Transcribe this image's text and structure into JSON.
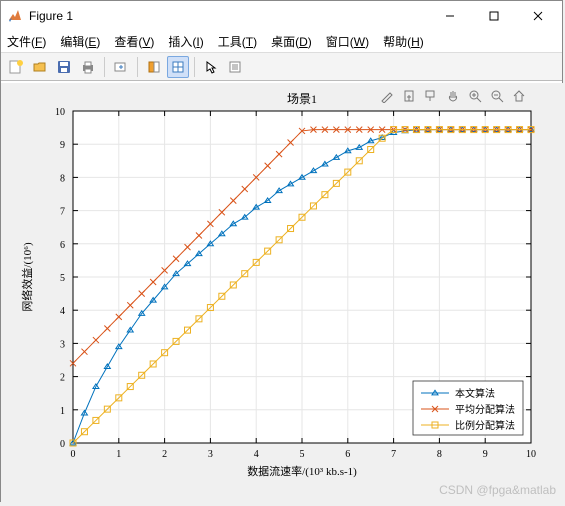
{
  "window": {
    "title": "Figure 1",
    "bg": "#ffffff"
  },
  "menubar": {
    "items": [
      {
        "label": "文件",
        "hotletter": "F"
      },
      {
        "label": "编辑",
        "hotletter": "E"
      },
      {
        "label": "查看",
        "hotletter": "V"
      },
      {
        "label": "插入",
        "hotletter": "I"
      },
      {
        "label": "工具",
        "hotletter": "T"
      },
      {
        "label": "桌面",
        "hotletter": "D"
      },
      {
        "label": "窗口",
        "hotletter": "W"
      },
      {
        "label": "帮助",
        "hotletter": "H"
      }
    ]
  },
  "chart": {
    "title": "场景1",
    "title_fontsize": 12,
    "xlabel": "数据流速率/(10³ kb.s-1)",
    "ylabel": "网络效益/(10⁶)",
    "label_fontsize": 11,
    "xlim": [
      0,
      10
    ],
    "ylim": [
      0,
      10
    ],
    "xtick_step": 1,
    "ytick_step": 1,
    "tick_fontsize": 10,
    "grid_color": "#e6e6e6",
    "axis_color": "#000000",
    "bg": "#ffffff",
    "figure_bg": "#f0f0f0",
    "series": [
      {
        "name": "本文算法",
        "color": "#0072bd",
        "marker": "triangle",
        "line_width": 1,
        "marker_size": 5,
        "x": [
          0,
          0.25,
          0.5,
          0.75,
          1,
          1.25,
          1.5,
          1.75,
          2,
          2.25,
          2.5,
          2.75,
          3,
          3.25,
          3.5,
          3.75,
          4,
          4.25,
          4.5,
          4.75,
          5,
          5.25,
          5.5,
          5.75,
          6,
          6.25,
          6.5,
          6.75,
          7,
          7.25,
          7.5,
          7.75,
          8,
          8.25,
          8.5,
          8.75,
          9,
          9.25,
          9.5,
          9.75,
          10
        ],
        "y": [
          0,
          0.9,
          1.7,
          2.3,
          2.9,
          3.4,
          3.9,
          4.3,
          4.7,
          5.1,
          5.4,
          5.7,
          6.0,
          6.3,
          6.6,
          6.8,
          7.1,
          7.3,
          7.6,
          7.8,
          8.0,
          8.2,
          8.4,
          8.6,
          8.8,
          8.9,
          9.1,
          9.2,
          9.35,
          9.4,
          9.43,
          9.44,
          9.44,
          9.44,
          9.44,
          9.44,
          9.44,
          9.44,
          9.44,
          9.44,
          9.44
        ]
      },
      {
        "name": "平均分配算法",
        "color": "#d95319",
        "marker": "x",
        "line_width": 1,
        "marker_size": 5,
        "x": [
          0,
          0.25,
          0.5,
          0.75,
          1,
          1.25,
          1.5,
          1.75,
          2,
          2.25,
          2.5,
          2.75,
          3,
          3.25,
          3.5,
          3.75,
          4,
          4.25,
          4.5,
          4.75,
          5,
          5.25,
          5.5,
          5.75,
          6,
          6.25,
          6.5,
          6.75,
          7,
          7.25,
          7.5,
          7.75,
          8,
          8.25,
          8.5,
          8.75,
          9,
          9.25,
          9.5,
          9.75,
          10
        ],
        "y": [
          2.4,
          2.75,
          3.1,
          3.45,
          3.8,
          4.15,
          4.5,
          4.85,
          5.2,
          5.55,
          5.9,
          6.25,
          6.6,
          6.95,
          7.3,
          7.65,
          8.0,
          8.35,
          8.7,
          9.05,
          9.4,
          9.44,
          9.44,
          9.44,
          9.44,
          9.44,
          9.44,
          9.44,
          9.44,
          9.44,
          9.44,
          9.44,
          9.44,
          9.44,
          9.44,
          9.44,
          9.44,
          9.44,
          9.44,
          9.44,
          9.44
        ]
      },
      {
        "name": "比例分配算法",
        "color": "#edb120",
        "marker": "square",
        "line_width": 1,
        "marker_size": 5,
        "x": [
          0,
          0.25,
          0.5,
          0.75,
          1,
          1.25,
          1.5,
          1.75,
          2,
          2.25,
          2.5,
          2.75,
          3,
          3.25,
          3.5,
          3.75,
          4,
          4.25,
          4.5,
          4.75,
          5,
          5.25,
          5.5,
          5.75,
          6,
          6.25,
          6.5,
          6.75,
          7,
          7.25,
          7.5,
          7.75,
          8,
          8.25,
          8.5,
          8.75,
          9,
          9.25,
          9.5,
          9.75,
          10
        ],
        "y": [
          0,
          0.34,
          0.68,
          1.02,
          1.36,
          1.7,
          2.04,
          2.38,
          2.72,
          3.06,
          3.4,
          3.74,
          4.08,
          4.42,
          4.76,
          5.1,
          5.44,
          5.78,
          6.12,
          6.46,
          6.8,
          7.14,
          7.48,
          7.82,
          8.16,
          8.5,
          8.84,
          9.18,
          9.44,
          9.44,
          9.44,
          9.44,
          9.44,
          9.44,
          9.44,
          9.44,
          9.44,
          9.44,
          9.44,
          9.44,
          9.44
        ]
      }
    ],
    "legend": {
      "position": "bottom-right",
      "bg": "#ffffff",
      "border": "#333333",
      "fontsize": 10
    }
  },
  "watermark": "CSDN @fpga&matlab"
}
